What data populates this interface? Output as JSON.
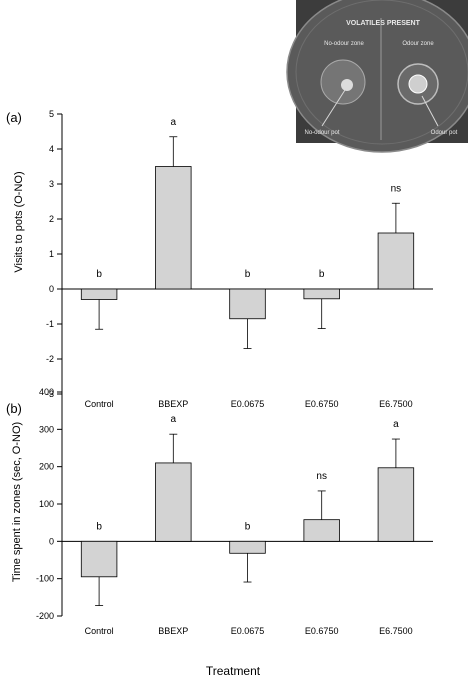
{
  "photo": {
    "header": "VOLATILES PRESENT",
    "left_zone": "No-odour zone",
    "right_zone": "Odour zone",
    "left_pot": "No-odour pot",
    "right_pot": "Odour pot"
  },
  "chart_data": [
    {
      "type": "bar",
      "panel_label": "(a)",
      "ylabel": "Visits to pots (O-NO)",
      "xlabel": "",
      "categories": [
        "Control",
        "BBEXP",
        "E0.0675",
        "E0.6750",
        "E6.7500"
      ],
      "values": [
        -0.3,
        3.5,
        -0.85,
        -0.28,
        1.6
      ],
      "errors": [
        0.85,
        0.85,
        0.85,
        0.85,
        0.85
      ],
      "significance": [
        "b",
        "a",
        "b",
        "b",
        "ns"
      ],
      "ylim": [
        -3,
        5
      ],
      "yticks": [
        -3,
        -2,
        -1,
        0,
        1,
        2,
        3,
        4,
        5
      ],
      "grid": false,
      "bar_color": "#d3d3d3"
    },
    {
      "type": "bar",
      "panel_label": "(b)",
      "ylabel": "Time spent in zones (sec, O-NO)",
      "xlabel": "Treatment",
      "categories": [
        "Control",
        "BBEXP",
        "E0.0675",
        "E0.6750",
        "E6.7500"
      ],
      "values": [
        -95,
        210,
        -32,
        58,
        197
      ],
      "errors": [
        77,
        77,
        77,
        77,
        77
      ],
      "significance": [
        "b",
        "a",
        "b",
        "ns",
        "a"
      ],
      "ylim": [
        -200,
        400
      ],
      "yticks": [
        -200,
        -100,
        0,
        100,
        200,
        300,
        400
      ],
      "grid": false,
      "bar_color": "#d3d3d3"
    }
  ]
}
